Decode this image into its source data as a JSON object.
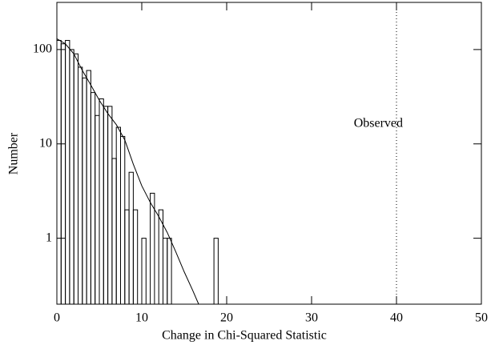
{
  "chart_data": {
    "type": "histogram",
    "xlabel": "Change in Chi-Squared Statistic",
    "ylabel": "Number",
    "bins": [
      0,
      0.5,
      1,
      1.5,
      2,
      2.5,
      3,
      3.5,
      4,
      4.5,
      5,
      5.5,
      6,
      6.5,
      7,
      7.5,
      8,
      8.5,
      9,
      9.5,
      10,
      10.5,
      11,
      11.5,
      12,
      12.5,
      13,
      13.5,
      14,
      14.5,
      15,
      15.5,
      16,
      16.5,
      17,
      17.5,
      18,
      18.5,
      19
    ],
    "counts": [
      125,
      115,
      125,
      100,
      90,
      65,
      50,
      60,
      35,
      20,
      30,
      25,
      25,
      7,
      15,
      12,
      2,
      5,
      2,
      0,
      1,
      0,
      3,
      0,
      2,
      1,
      1,
      0,
      0,
      0,
      0,
      0,
      0,
      0,
      0,
      0,
      0,
      1
    ],
    "curve": {
      "x": [
        0,
        1,
        2,
        3,
        4,
        5,
        6,
        7,
        8,
        9,
        10,
        11,
        12,
        13,
        14,
        15,
        16,
        16.7
      ],
      "y": [
        130,
        115,
        90,
        60,
        42,
        29,
        21,
        16,
        11,
        6.1,
        3.6,
        2.4,
        1.7,
        1.15,
        0.72,
        0.44,
        0.28,
        0.2
      ]
    },
    "vline": 40,
    "annotation": "Observed",
    "log_y": true,
    "xlim": [
      0,
      50
    ],
    "xticks": [
      0,
      10,
      20,
      30,
      40,
      50
    ],
    "ylim": [
      0.2,
      316
    ],
    "yticks": [
      1,
      10,
      100
    ],
    "color": "#000000"
  }
}
